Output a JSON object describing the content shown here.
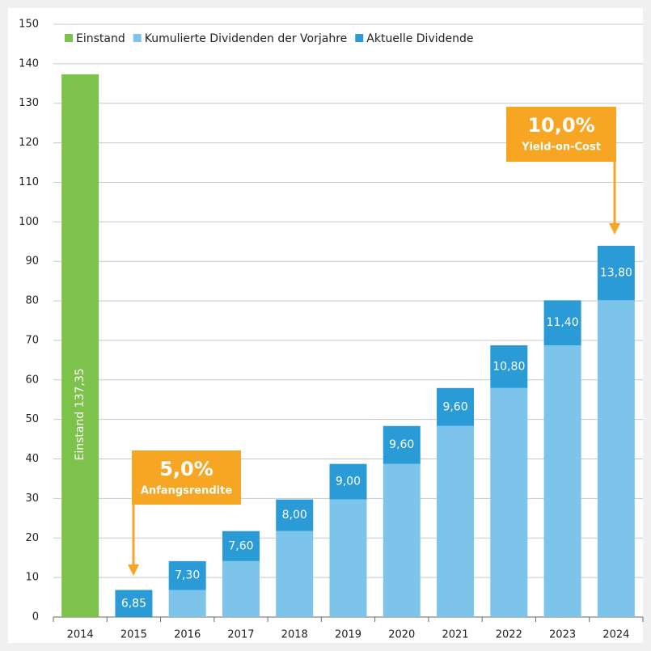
{
  "chart_data": {
    "type": "stacked-bar",
    "categories": [
      "2014",
      "2015",
      "2016",
      "2017",
      "2018",
      "2019",
      "2020",
      "2021",
      "2022",
      "2023",
      "2024"
    ],
    "series": [
      {
        "name": "Einstand",
        "color": "#7dc24b",
        "values": [
          137.35,
          null,
          null,
          null,
          null,
          null,
          null,
          null,
          null,
          null,
          null
        ],
        "value_labels": [
          "Einstand 137,35",
          null,
          null,
          null,
          null,
          null,
          null,
          null,
          null,
          null,
          null
        ]
      },
      {
        "name": "Kumulierte Dividenden der Vorjahre",
        "color": "#7cc4ea",
        "values": [
          null,
          null,
          6.85,
          14.15,
          21.75,
          29.75,
          38.75,
          48.35,
          57.95,
          68.75,
          80.15
        ]
      },
      {
        "name": "Aktuelle Dividende",
        "color": "#2a9bd6",
        "values": [
          null,
          6.85,
          7.3,
          7.6,
          8.0,
          9.0,
          9.6,
          9.6,
          10.8,
          11.4,
          13.8
        ],
        "value_labels": [
          null,
          "6,85",
          "7,30",
          "7,60",
          "8,00",
          "9,00",
          "9,60",
          "9,60",
          "10,80",
          "11,40",
          "13,80"
        ]
      }
    ],
    "annotations": [
      {
        "title": "5,0%",
        "text": "Anfangsrendite"
      },
      {
        "title": "10,0%",
        "text": "Yield-on-Cost"
      }
    ],
    "ylim": [
      0,
      150
    ],
    "yticks": [
      0,
      10,
      20,
      30,
      40,
      50,
      60,
      70,
      80,
      90,
      100,
      110,
      120,
      130,
      140,
      150
    ],
    "grid": true
  }
}
